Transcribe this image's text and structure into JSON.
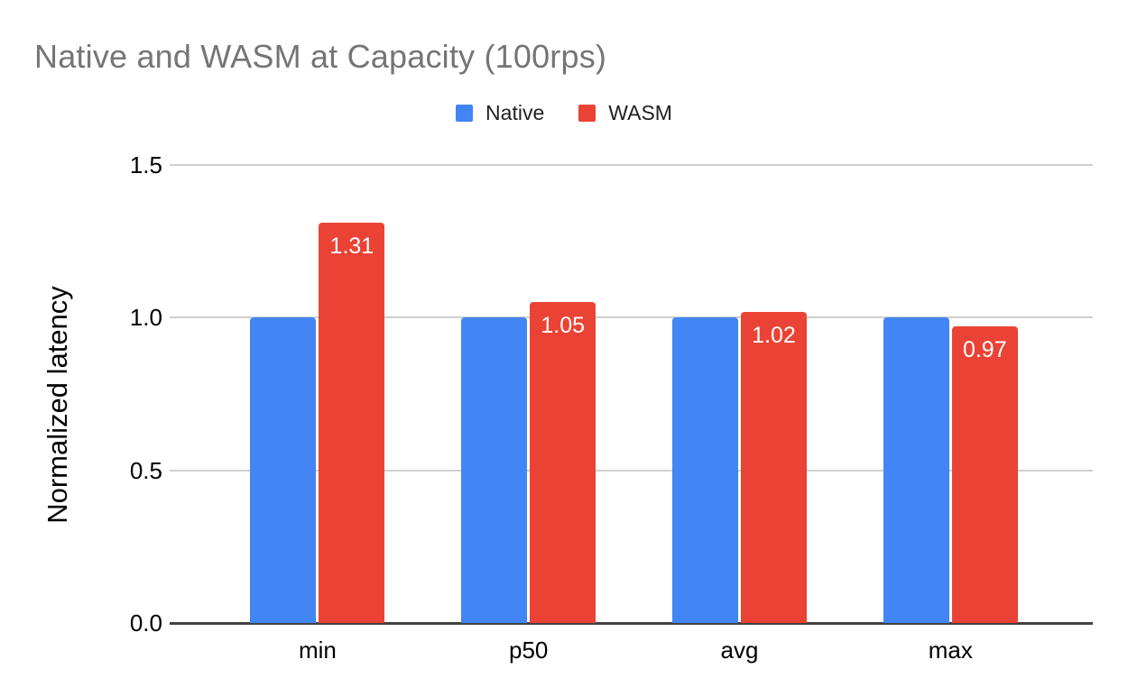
{
  "chart": {
    "title": "Native and WASM at Capacity (100rps)",
    "ylabel": "Normalized latency"
  },
  "chart_data": {
    "type": "bar",
    "title": "Native and WASM at Capacity (100rps)",
    "categories": [
      "min",
      "p50",
      "avg",
      "max"
    ],
    "series": [
      {
        "name": "Native",
        "color": "#4285F4",
        "values": [
          1.0,
          1.0,
          1.0,
          1.0
        ],
        "data_labels": [
          "",
          "",
          "",
          ""
        ]
      },
      {
        "name": "WASM",
        "color": "#EA4335",
        "values": [
          1.31,
          1.05,
          1.02,
          0.97
        ],
        "data_labels": [
          "1.31",
          "1.05",
          "1.02",
          "0.97"
        ]
      }
    ],
    "xlabel": "",
    "ylabel": "Normalized latency",
    "ylim": [
      0,
      1.5
    ],
    "yticks": [
      0,
      0.5,
      1.0,
      1.5
    ],
    "ytick_labels": [
      "0.0",
      "0.5",
      "1.0",
      "1.5"
    ],
    "grid": true,
    "legend_position": "top-center",
    "colors": {
      "native": "#4285F4",
      "wasm": "#EA4335",
      "title_text": "#757575",
      "axis_text": "#000000",
      "gridline": "#CFCFCF",
      "baseline": "#424242",
      "bar_label_text": "#FFFFFF",
      "background": "#FFFFFF"
    }
  }
}
